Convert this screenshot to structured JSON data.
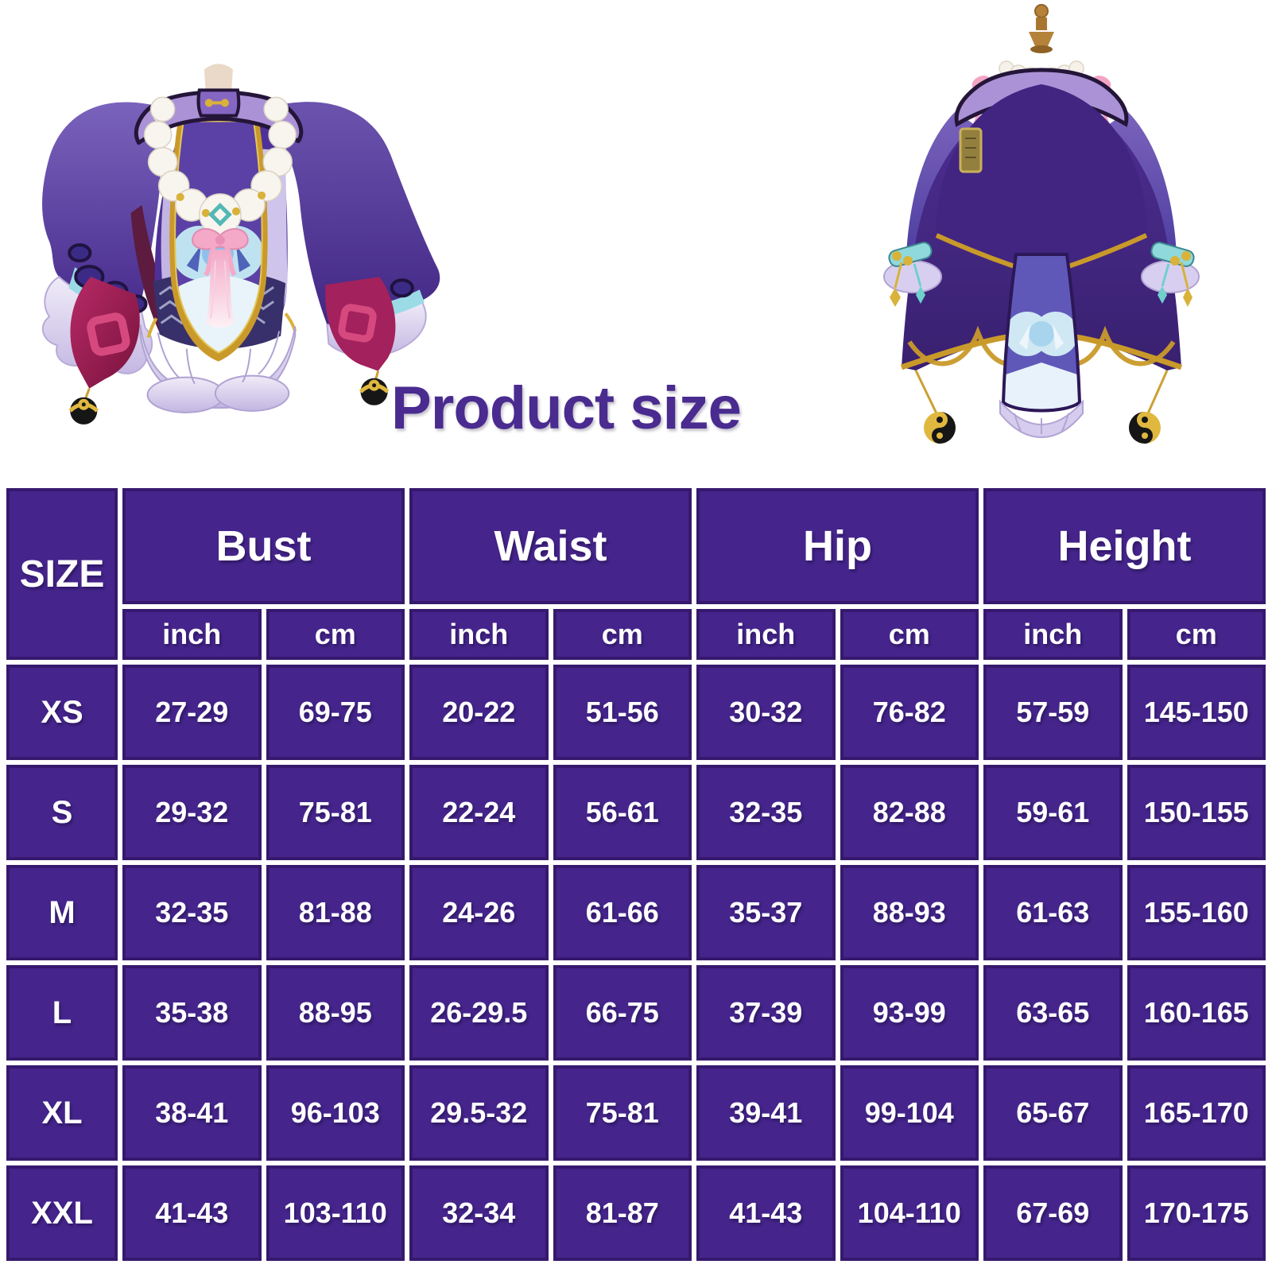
{
  "title": {
    "text": "Product size"
  },
  "images": {
    "front_alt": "costume front view",
    "back_alt": "costume back view"
  },
  "colors": {
    "title_text": "#4a2b8f",
    "table_cell_fill": "#45258c",
    "table_cell_edge": "#36196e",
    "grid_line": "#ffffff",
    "table_text": "#ffffff"
  },
  "chart_data": {
    "type": "table",
    "title": "Product size",
    "size_column_header": "SIZE",
    "measure_groups": [
      "Bust",
      "Waist",
      "Hip",
      "Height"
    ],
    "unit_labels": [
      "inch",
      "cm"
    ],
    "columns": [
      "SIZE",
      "Bust inch",
      "Bust cm",
      "Waist inch",
      "Waist cm",
      "Hip inch",
      "Hip cm",
      "Height inch",
      "Height cm"
    ],
    "rows": [
      {
        "size": "XS",
        "values": [
          "27-29",
          "69-75",
          "20-22",
          "51-56",
          "30-32",
          "76-82",
          "57-59",
          "145-150"
        ]
      },
      {
        "size": "S",
        "values": [
          "29-32",
          "75-81",
          "22-24",
          "56-61",
          "32-35",
          "82-88",
          "59-61",
          "150-155"
        ]
      },
      {
        "size": "M",
        "values": [
          "32-35",
          "81-88",
          "24-26",
          "61-66",
          "35-37",
          "88-93",
          "61-63",
          "155-160"
        ]
      },
      {
        "size": "L",
        "values": [
          "35-38",
          "88-95",
          "26-29.5",
          "66-75",
          "37-39",
          "93-99",
          "63-65",
          "160-165"
        ]
      },
      {
        "size": "XL",
        "values": [
          "38-41",
          "96-103",
          "29.5-32",
          "75-81",
          "39-41",
          "99-104",
          "65-67",
          "165-170"
        ]
      },
      {
        "size": "XXL",
        "values": [
          "41-43",
          "103-110",
          "32-34",
          "81-87",
          "41-43",
          "104-110",
          "67-69",
          "170-175"
        ]
      }
    ]
  }
}
